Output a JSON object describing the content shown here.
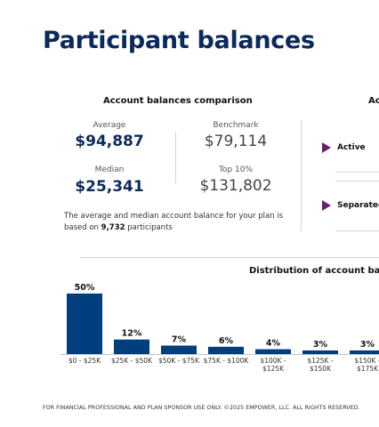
{
  "page": {
    "title": "Participant balances"
  },
  "comparison": {
    "title": "Account balances comparison",
    "average_label": "Average",
    "average_value": "$94,887",
    "benchmark_label": "Benchmark",
    "benchmark_value": "$79,114",
    "median_label": "Median",
    "median_value": "$25,341",
    "top10_label": "Top 10%",
    "top10_value": "$131,802",
    "summary_prefix": "The average and median account balance for your plan is based on ",
    "summary_count": "9,732",
    "summary_suffix": " participants"
  },
  "status_panel": {
    "title_fragment": "Ac",
    "items": [
      {
        "label": "Active"
      },
      {
        "label": "Separated"
      }
    ]
  },
  "colors": {
    "bar": "#003e7e",
    "accent": "#6a1e6e",
    "title": "#0b2a5b"
  },
  "chart_data": {
    "type": "bar",
    "title": "Distribution of account balan",
    "categories": [
      "$0 - $25K",
      "$25K - $50K",
      "$50K - $75K",
      "$75K - $100K",
      "$100K - $125K",
      "$125K - $150K",
      "$150K - $175K"
    ],
    "values": [
      50,
      12,
      7,
      6,
      4,
      3,
      3
    ],
    "value_labels": [
      "50%",
      "12%",
      "7%",
      "6%",
      "4%",
      "3%",
      "3%"
    ],
    "unit": "%",
    "ylim": [
      0,
      50
    ],
    "grid": false,
    "legend": "none"
  },
  "footer": {
    "text": "FOR FINANCIAL PROFESSIONAL AND PLAN SPONSOR USE ONLY. ©2025 EMPOWER, LLC. ALL RIGHTS RESERVED."
  }
}
